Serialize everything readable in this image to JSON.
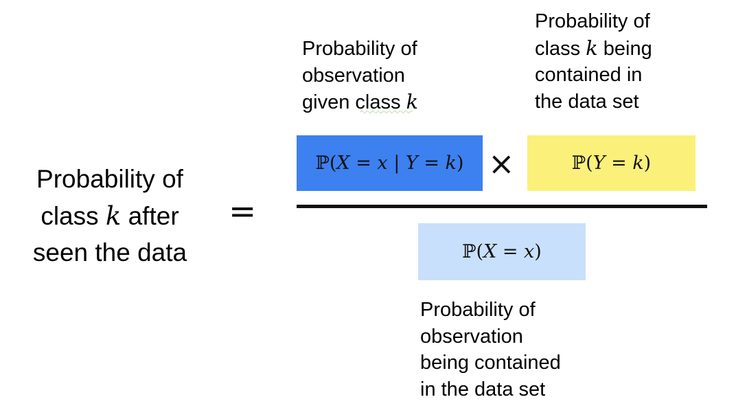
{
  "posterior_label": {
    "line1": "Probability of",
    "line2_before": "class ",
    "line2_var": "k",
    "line2_after": " after",
    "line3": "seen the data"
  },
  "equals_sign": "=",
  "likelihood_label": {
    "line1": "Probability of",
    "line2": "observation",
    "line3_before": "given class ",
    "line3_var": "k"
  },
  "prior_label": {
    "line1": "Probability of",
    "line2_before": "class ",
    "line2_var": "k",
    "line2_after": " being",
    "line3": "contained in",
    "line4": "the data set"
  },
  "evidence_label": {
    "line1": "Probability of",
    "line2": "observation",
    "line3": "being contained",
    "line4": "in the data set"
  },
  "likelihood_box": {
    "prob": "ℙ",
    "open": "(",
    "X": "X",
    "eq1": " = ",
    "x": "x",
    "bar": " | ",
    "Y": "Y",
    "eq2": " = ",
    "k": "k",
    "close": ")"
  },
  "times_sign": "×",
  "prior_box": {
    "prob": "ℙ",
    "open": "(",
    "Y": "Y",
    "eq": " = ",
    "k": "k",
    "close": ")"
  },
  "evidence_box": {
    "prob": "ℙ",
    "open": "(",
    "X": "X",
    "eq": " = ",
    "x": "x",
    "close": ")"
  },
  "colors": {
    "likelihood_box": "#3d80f0",
    "prior_box": "#fbf079",
    "evidence_box": "#c8e0fb",
    "text": "#111111",
    "squiggle": "#7dbf6a"
  }
}
